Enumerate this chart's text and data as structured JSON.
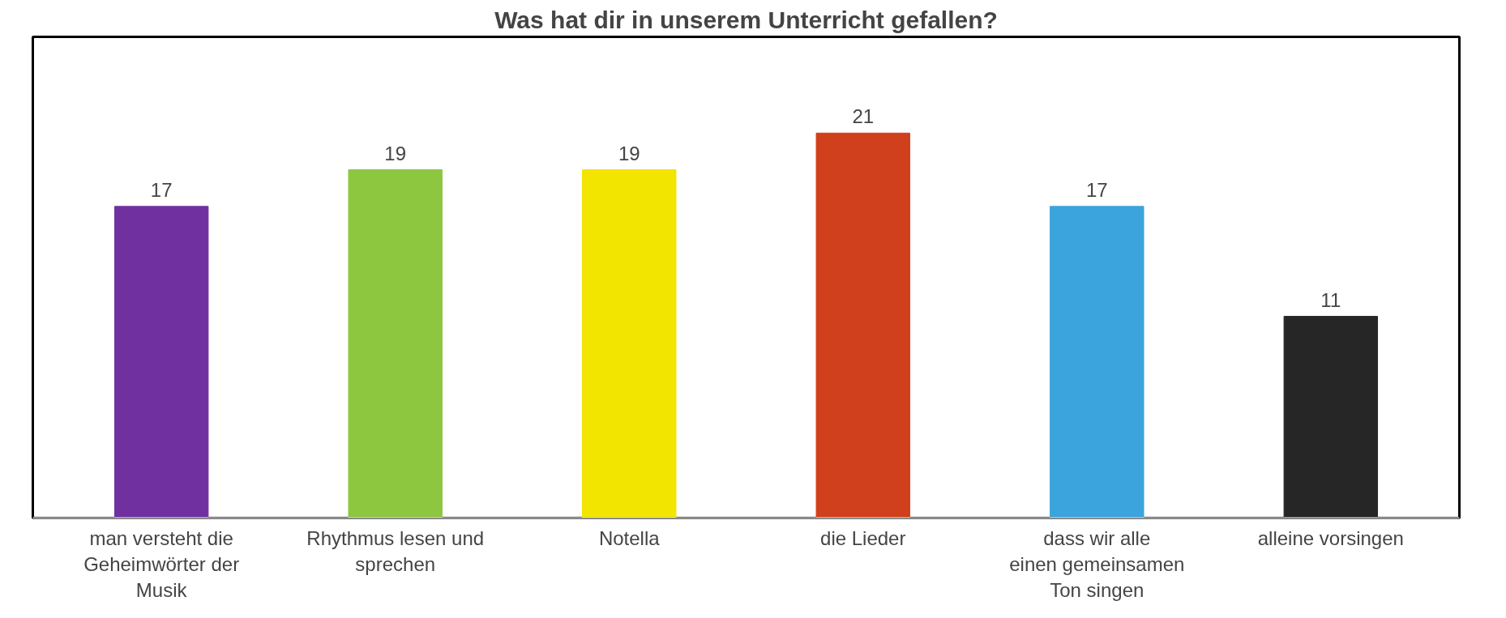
{
  "chart_data": {
    "type": "bar",
    "title": "Was hat dir in unserem Unterricht gefallen?",
    "categories": [
      "man versteht die Geheimwörter der Musik",
      "Rhythmus lesen und sprechen",
      "Notella",
      "die Lieder",
      "dass wir alle einen gemeinsamen Ton singen",
      "alleine vorsingen"
    ],
    "values": [
      17,
      19,
      19,
      21,
      17,
      11
    ],
    "colors": [
      "#7030a0",
      "#8dc63f",
      "#f2e500",
      "#d0401c",
      "#3ba4dc",
      "#262626"
    ],
    "data_labels": true
  }
}
